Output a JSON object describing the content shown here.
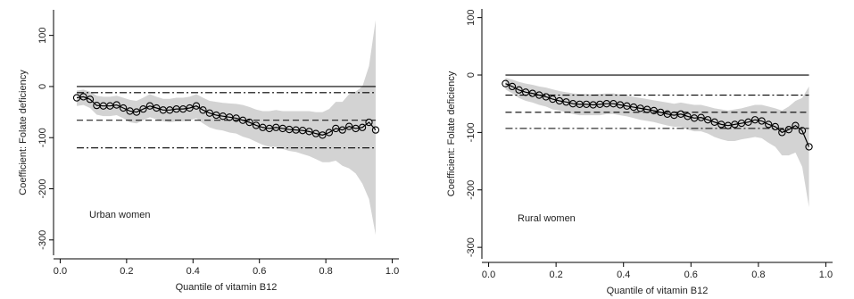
{
  "chart_data": [
    {
      "type": "line",
      "annotation": "Urban women",
      "x_label": "Quantile of vitamin B12",
      "y_label": "Coefficient: Folate deficiency",
      "color": "#000000",
      "band_color": "#d3d3d3",
      "xlim": [
        -0.02,
        1.02
      ],
      "xticks": [
        {
          "value": 0,
          "label": "0.0"
        },
        0.2,
        0.4,
        0.6,
        0.8,
        {
          "value": 1,
          "label": "1.0"
        }
      ],
      "ylim": [
        -330,
        150
      ],
      "yticks": [
        100,
        0,
        -100,
        -200,
        -300
      ],
      "x": [
        0.05,
        0.07,
        0.09,
        0.11,
        0.13,
        0.15,
        0.17,
        0.19,
        0.21,
        0.23,
        0.25,
        0.27,
        0.29,
        0.31,
        0.33,
        0.35,
        0.37,
        0.39,
        0.41,
        0.43,
        0.45,
        0.47,
        0.49,
        0.51,
        0.53,
        0.55,
        0.57,
        0.59,
        0.61,
        0.63,
        0.65,
        0.67,
        0.69,
        0.71,
        0.73,
        0.75,
        0.77,
        0.79,
        0.81,
        0.83,
        0.85,
        0.87,
        0.89,
        0.91,
        0.93,
        0.95
      ],
      "values": [
        -22,
        -20,
        -25,
        -37,
        -38,
        -38,
        -36,
        -42,
        -48,
        -50,
        -44,
        -38,
        -42,
        -46,
        -46,
        -44,
        -44,
        -42,
        -38,
        -46,
        -52,
        -56,
        -58,
        -60,
        -62,
        -66,
        -70,
        -76,
        -80,
        -82,
        -80,
        -82,
        -84,
        -85,
        -86,
        -88,
        -92,
        -95,
        -90,
        -82,
        -85,
        -78,
        -82,
        -80,
        -70,
        -85
      ],
      "ci_upper": [
        -8,
        -6,
        -10,
        -18,
        -20,
        -20,
        -18,
        -22,
        -26,
        -28,
        -22,
        -15,
        -20,
        -24,
        -24,
        -22,
        -22,
        -20,
        -15,
        -22,
        -28,
        -30,
        -32,
        -33,
        -34,
        -36,
        -40,
        -45,
        -48,
        -48,
        -46,
        -48,
        -48,
        -48,
        -48,
        -48,
        -50,
        -50,
        -44,
        -30,
        -30,
        -15,
        -10,
        0,
        40,
        130
      ],
      "ci_lower": [
        -38,
        -36,
        -42,
        -55,
        -58,
        -58,
        -56,
        -62,
        -70,
        -72,
        -66,
        -60,
        -64,
        -68,
        -70,
        -68,
        -68,
        -66,
        -62,
        -72,
        -80,
        -84,
        -86,
        -90,
        -92,
        -98,
        -102,
        -108,
        -114,
        -118,
        -118,
        -122,
        -126,
        -128,
        -132,
        -136,
        -142,
        -148,
        -148,
        -145,
        -155,
        -160,
        -170,
        -190,
        -220,
        -290
      ],
      "reference_lines": [
        {
          "value": 0,
          "style": "solid"
        },
        {
          "value": -12,
          "style": "dashdot"
        },
        {
          "value": -66,
          "style": "dash"
        },
        {
          "value": -120,
          "style": "dashdot"
        }
      ]
    },
    {
      "type": "line",
      "annotation": "Rural women",
      "x_label": "Quantile of vitamin B12",
      "y_label": "Coefficient: Folate deficiency",
      "color": "#000000",
      "band_color": "#d3d3d3",
      "xlim": [
        -0.02,
        1.02
      ],
      "xticks": [
        {
          "value": 0,
          "label": "0.0"
        },
        0.2,
        0.4,
        0.6,
        0.8,
        {
          "value": 1,
          "label": "1.0"
        }
      ],
      "ylim": [
        -320,
        115
      ],
      "yticks": [
        100,
        0,
        -100,
        -200,
        -300
      ],
      "x": [
        0.05,
        0.07,
        0.09,
        0.11,
        0.13,
        0.15,
        0.17,
        0.19,
        0.21,
        0.23,
        0.25,
        0.27,
        0.29,
        0.31,
        0.33,
        0.35,
        0.37,
        0.39,
        0.41,
        0.43,
        0.45,
        0.47,
        0.49,
        0.51,
        0.53,
        0.55,
        0.57,
        0.59,
        0.61,
        0.63,
        0.65,
        0.67,
        0.69,
        0.71,
        0.73,
        0.75,
        0.77,
        0.79,
        0.81,
        0.83,
        0.85,
        0.87,
        0.89,
        0.91,
        0.93,
        0.95
      ],
      "values": [
        -15,
        -20,
        -26,
        -30,
        -32,
        -35,
        -38,
        -42,
        -45,
        -47,
        -50,
        -51,
        -51,
        -52,
        -51,
        -50,
        -50,
        -52,
        -54,
        -56,
        -58,
        -60,
        -62,
        -65,
        -68,
        -70,
        -68,
        -72,
        -75,
        -74,
        -78,
        -82,
        -86,
        -88,
        -86,
        -84,
        -82,
        -78,
        -80,
        -86,
        -90,
        -100,
        -95,
        -88,
        -97,
        -125
      ],
      "ci_upper": [
        -5,
        -8,
        -12,
        -15,
        -17,
        -20,
        -22,
        -25,
        -28,
        -30,
        -32,
        -33,
        -33,
        -34,
        -33,
        -32,
        -32,
        -34,
        -36,
        -38,
        -40,
        -42,
        -44,
        -46,
        -48,
        -50,
        -48,
        -50,
        -52,
        -52,
        -55,
        -58,
        -60,
        -62,
        -60,
        -58,
        -55,
        -52,
        -52,
        -55,
        -58,
        -62,
        -55,
        -45,
        -40,
        -20
      ],
      "ci_lower": [
        -25,
        -32,
        -40,
        -45,
        -48,
        -52,
        -55,
        -60,
        -62,
        -65,
        -68,
        -70,
        -70,
        -70,
        -70,
        -68,
        -68,
        -70,
        -72,
        -75,
        -78,
        -80,
        -82,
        -85,
        -88,
        -90,
        -90,
        -95,
        -98,
        -98,
        -102,
        -108,
        -112,
        -115,
        -115,
        -112,
        -110,
        -108,
        -110,
        -118,
        -125,
        -140,
        -140,
        -135,
        -160,
        -230
      ],
      "reference_lines": [
        {
          "value": 0,
          "style": "solid"
        },
        {
          "value": -35,
          "style": "dashdot"
        },
        {
          "value": -65,
          "style": "dash"
        },
        {
          "value": -93,
          "style": "dashdot"
        }
      ]
    }
  ]
}
